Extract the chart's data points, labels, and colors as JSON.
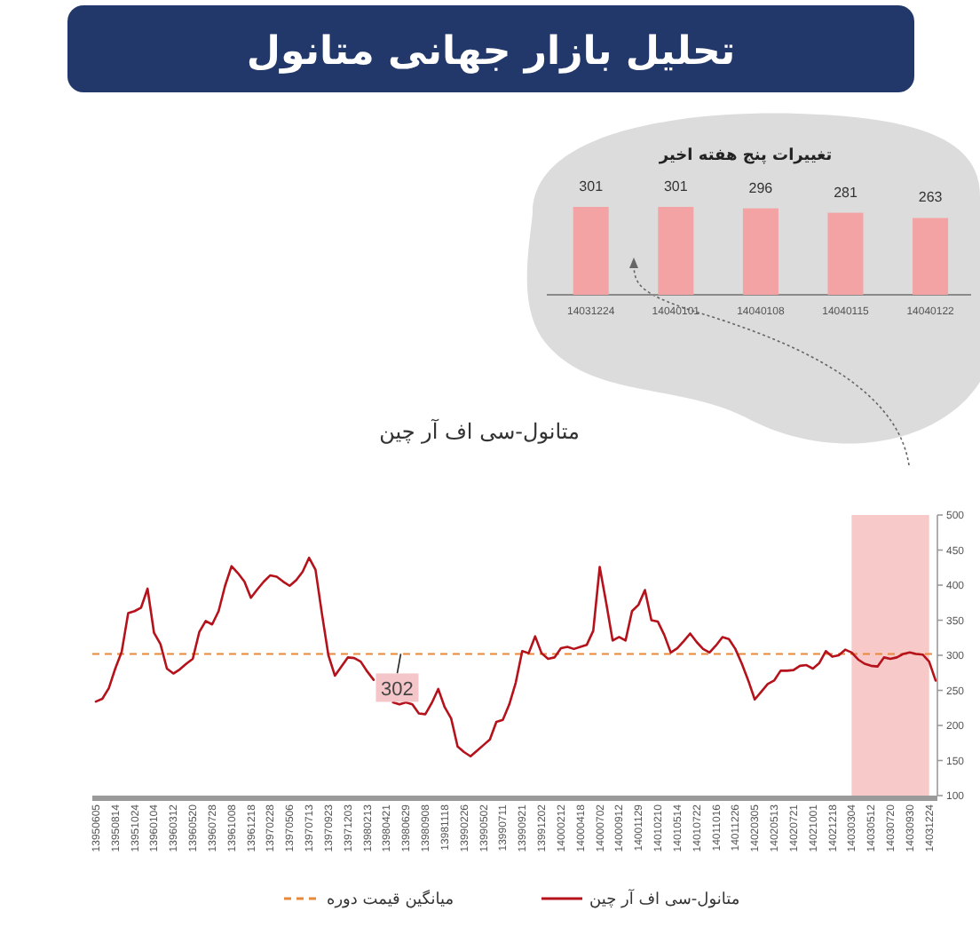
{
  "chart_data": [
    {
      "type": "other",
      "title": "تحلیل بازار جهانی متانول"
    },
    {
      "type": "bar",
      "title": "تغییرات پنج هفته اخیر",
      "categories": [
        "14031224",
        "14040101",
        "14040108",
        "14040115",
        "14040122"
      ],
      "values": [
        301,
        301,
        296,
        281,
        263
      ],
      "color": "#f3a3a3",
      "data_labels": true,
      "tick_labels": "x"
    },
    {
      "type": "line",
      "title": "متانول-سی اف آر چین",
      "ylim": [
        100,
        500
      ],
      "yticks": [
        100,
        150,
        200,
        250,
        300,
        350,
        400,
        450,
        500
      ],
      "categories": [
        "13950605",
        null,
        null,
        "13950814",
        null,
        null,
        "13951024",
        null,
        null,
        "13960104",
        null,
        null,
        "13960312",
        null,
        null,
        "13960520",
        null,
        null,
        "13960728",
        null,
        null,
        "13961008",
        null,
        null,
        "13961218",
        null,
        null,
        "13970228",
        null,
        null,
        "13970506",
        null,
        null,
        "13970713",
        null,
        null,
        "13970923",
        null,
        null,
        "13971203",
        null,
        null,
        "13980213",
        null,
        null,
        "13980421",
        null,
        null,
        "13980629",
        null,
        null,
        "13980908",
        null,
        null,
        "13981118",
        null,
        null,
        "13990226",
        null,
        null,
        "13990502",
        null,
        null,
        "13990711",
        null,
        null,
        "13990921",
        null,
        null,
        "13991202",
        null,
        null,
        "14000212",
        null,
        null,
        "14000418",
        null,
        null,
        "14000702",
        null,
        null,
        "14000912",
        null,
        null,
        "14001129",
        null,
        null,
        "14010210",
        null,
        null,
        "14010514",
        null,
        null,
        "14010722",
        null,
        null,
        "14011016",
        null,
        null,
        "14011226",
        null,
        null,
        "14020305",
        null,
        null,
        "14020513",
        null,
        null,
        "14020721",
        null,
        null,
        "14021001",
        null,
        null,
        "14021218",
        null,
        null,
        "14030304",
        null,
        null,
        "14030512",
        null,
        null,
        "14030720",
        null,
        null,
        "14030930",
        null,
        null,
        "14031224",
        null
      ],
      "series": [
        {
          "name": "متانول-سی اف آر چین",
          "color": "#b5121b",
          "values": [
            234,
            238,
            253,
            281,
            305,
            360,
            363,
            368,
            395,
            332,
            316,
            281,
            274,
            280,
            288,
            295,
            333,
            349,
            344,
            363,
            399,
            427,
            417,
            405,
            382,
            394,
            405,
            414,
            412,
            405,
            399,
            407,
            419,
            439,
            422,
            359,
            300,
            271,
            284,
            297,
            296,
            291,
            277,
            265,
            null,
            null,
            233,
            230,
            233,
            230,
            217,
            216,
            232,
            252,
            226,
            210,
            170,
            162,
            156,
            164,
            172,
            180,
            205,
            208,
            230,
            261,
            306,
            303,
            327,
            303,
            295,
            297,
            310,
            312,
            309,
            312,
            315,
            335,
            426,
            375,
            321,
            326,
            321,
            363,
            372,
            393,
            350,
            348,
            329,
            304,
            310,
            320,
            331,
            319,
            309,
            304,
            314,
            326,
            323,
            309,
            288,
            264,
            237,
            248,
            259,
            264,
            278,
            278,
            279,
            285,
            286,
            281,
            289,
            306,
            298,
            300,
            308,
            304,
            294,
            288,
            285,
            284,
            297,
            295,
            297,
            302,
            304,
            302,
            301,
            291,
            264
          ]
        }
      ],
      "ref_lines": [
        {
          "axis": "y",
          "value": 302,
          "label": "میانگین قیمت دوره",
          "color": "#e8893a",
          "line_style": "dashed"
        }
      ],
      "bands": [
        {
          "axis": "x",
          "from": "14030304",
          "to": "14031224",
          "color": "#f7c9c9"
        }
      ],
      "annotations": [
        {
          "text": "302",
          "y": 302
        }
      ],
      "legend": "bottom"
    }
  ]
}
